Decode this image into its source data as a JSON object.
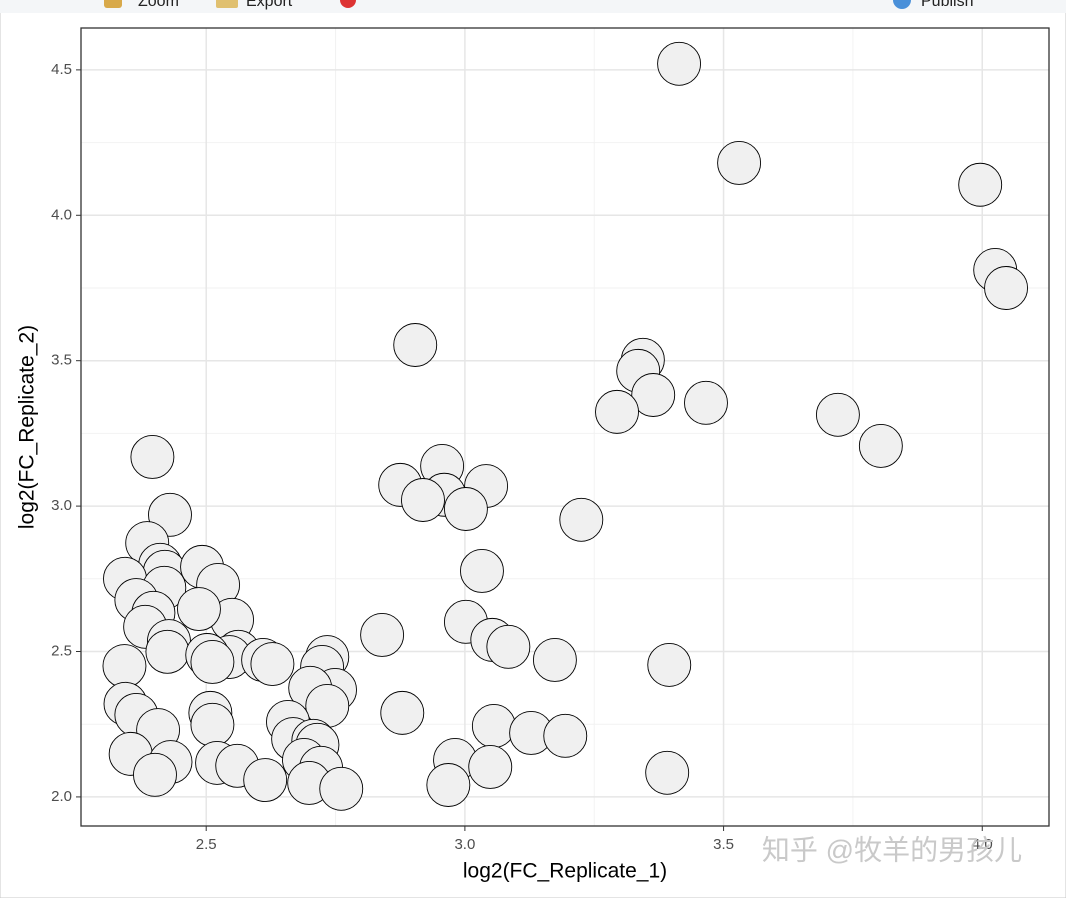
{
  "toolbar": {
    "zoom": "Zoom",
    "export": "Export",
    "publish": "Publish"
  },
  "watermark": "知乎 @牧羊的男孩儿",
  "chart_data": {
    "type": "scatter",
    "x_label": "log2(FC_Replicate_1)",
    "y_label": "log2(FC_Replicate_2)",
    "x": [
      3.414,
      3.53,
      3.996,
      4.025,
      4.046,
      2.904,
      3.344,
      3.335,
      3.364,
      3.294,
      3.466,
      3.721,
      3.804,
      2.396,
      2.956,
      2.875,
      3.041,
      2.96,
      2.919,
      3.002,
      2.43,
      3.225,
      2.386,
      2.411,
      2.42,
      2.492,
      3.033,
      2.523,
      2.343,
      2.419,
      2.55,
      2.365,
      2.398,
      2.486,
      2.382,
      3.002,
      2.84,
      3.053,
      3.084,
      2.428,
      2.425,
      2.562,
      2.545,
      2.502,
      2.512,
      2.61,
      2.628,
      3.174,
      3.395,
      2.734,
      2.724,
      2.342,
      2.749,
      2.701,
      2.734,
      2.344,
      2.365,
      2.407,
      2.508,
      2.512,
      2.879,
      2.658,
      2.668,
      2.707,
      2.715,
      3.056,
      3.128,
      3.194,
      2.354,
      2.431,
      2.521,
      2.56,
      2.689,
      2.722,
      2.981,
      3.049,
      3.391,
      2.401,
      2.614,
      2.699,
      2.761,
      2.968
    ],
    "y": [
      4.521,
      4.18,
      4.105,
      3.812,
      3.75,
      3.554,
      3.503,
      3.465,
      3.382,
      3.324,
      3.355,
      3.314,
      3.207,
      3.169,
      3.138,
      3.073,
      3.069,
      3.039,
      3.021,
      2.99,
      2.97,
      2.953,
      2.873,
      2.798,
      2.774,
      2.791,
      2.777,
      2.729,
      2.75,
      2.719,
      2.609,
      2.677,
      2.633,
      2.646,
      2.585,
      2.602,
      2.557,
      2.54,
      2.516,
      2.536,
      2.499,
      2.499,
      2.481,
      2.488,
      2.464,
      2.471,
      2.457,
      2.471,
      2.454,
      2.481,
      2.447,
      2.45,
      2.368,
      2.375,
      2.313,
      2.32,
      2.282,
      2.23,
      2.289,
      2.248,
      2.289,
      2.258,
      2.199,
      2.193,
      2.179,
      2.244,
      2.22,
      2.21,
      2.148,
      2.12,
      2.117,
      2.107,
      2.127,
      2.1,
      2.127,
      2.103,
      2.083,
      2.076,
      2.058,
      2.048,
      2.028,
      2.041
    ],
    "xlim": [
      2.258,
      4.129
    ],
    "ylim": [
      1.9,
      4.644
    ],
    "xticks": [
      2.5,
      {
        "value": 3,
        "label": "3.0"
      },
      3.5,
      {
        "value": 4,
        "label": "4.0"
      }
    ],
    "yticks": [
      {
        "value": 2,
        "label": "2.0"
      },
      2.5,
      {
        "value": 3,
        "label": "3.0"
      },
      3.5,
      {
        "value": 4,
        "label": "4.0"
      },
      4.5
    ],
    "grid": true,
    "color": "#f0f0f0",
    "edge_color": "#000000"
  }
}
